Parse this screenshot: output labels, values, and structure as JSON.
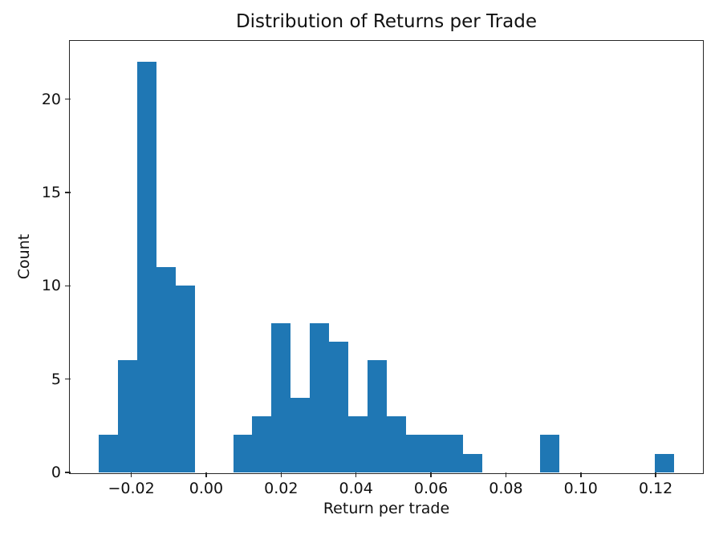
{
  "chart_data": {
    "type": "bar",
    "subtype": "histogram",
    "title": "Distribution of Returns per Trade",
    "xlabel": "Return per trade",
    "ylabel": "Count",
    "bar_color": "#1f77b4",
    "axis_color": "#262626",
    "text_color": "#111111",
    "grid": "off",
    "legend": "none",
    "xlim": [
      -0.0363,
      0.1324
    ],
    "ylim": [
      0,
      23.1
    ],
    "bins": {
      "start": -0.02861,
      "width": 0.005117,
      "count": 30
    },
    "counts": [
      2,
      6,
      22,
      11,
      10,
      0,
      0,
      2,
      3,
      8,
      4,
      8,
      7,
      3,
      6,
      3,
      2,
      2,
      2,
      1,
      0,
      0,
      0,
      2,
      0,
      0,
      0,
      0,
      0,
      1
    ],
    "xticks": [
      {
        "value": -0.02,
        "label": "−0.02"
      },
      {
        "value": 0.0,
        "label": "0.00"
      },
      {
        "value": 0.02,
        "label": "0.02"
      },
      {
        "value": 0.04,
        "label": "0.04"
      },
      {
        "value": 0.06,
        "label": "0.06"
      },
      {
        "value": 0.08,
        "label": "0.08"
      },
      {
        "value": 0.1,
        "label": "0.10"
      },
      {
        "value": 0.12,
        "label": "0.12"
      }
    ],
    "yticks": [
      {
        "value": 0,
        "label": "0"
      },
      {
        "value": 5,
        "label": "5"
      },
      {
        "value": 10,
        "label": "10"
      },
      {
        "value": 15,
        "label": "15"
      },
      {
        "value": 20,
        "label": "20"
      }
    ]
  }
}
